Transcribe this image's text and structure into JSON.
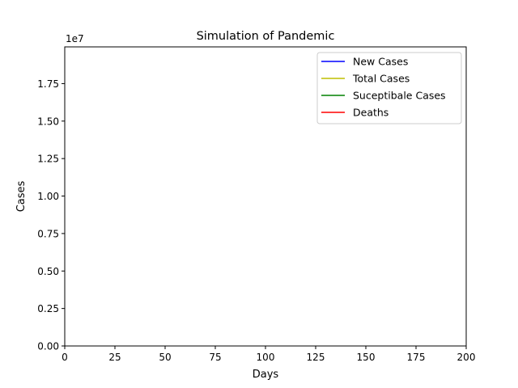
{
  "chart_data": {
    "type": "line",
    "title": "Simulation of Pandemic",
    "xlabel": "Days",
    "ylabel": "Cases",
    "y_offset_text": "1e7",
    "xlim": [
      0,
      200
    ],
    "ylim": [
      0,
      19950000
    ],
    "x_ticks": [
      0,
      25,
      50,
      75,
      100,
      125,
      150,
      175,
      200
    ],
    "x_tick_labels": [
      "0",
      "25",
      "50",
      "75",
      "100",
      "125",
      "150",
      "175",
      "200"
    ],
    "y_ticks": [
      0,
      2500000,
      5000000,
      7500000,
      10000000,
      12500000,
      15000000,
      17500000
    ],
    "y_tick_labels": [
      "0.00",
      "0.25",
      "0.50",
      "0.75",
      "1.00",
      "1.25",
      "1.50",
      "1.75"
    ],
    "grid": false,
    "legend_position": "top-right",
    "series": [
      {
        "name": "New Cases",
        "color": "#0000ff",
        "x": [],
        "y": []
      },
      {
        "name": "Total Cases",
        "color": "#bfbf00",
        "x": [],
        "y": []
      },
      {
        "name": "Suceptibale Cases",
        "color": "#008000",
        "x": [],
        "y": []
      },
      {
        "name": "Deaths",
        "color": "#ff0000",
        "x": [],
        "y": []
      }
    ]
  }
}
